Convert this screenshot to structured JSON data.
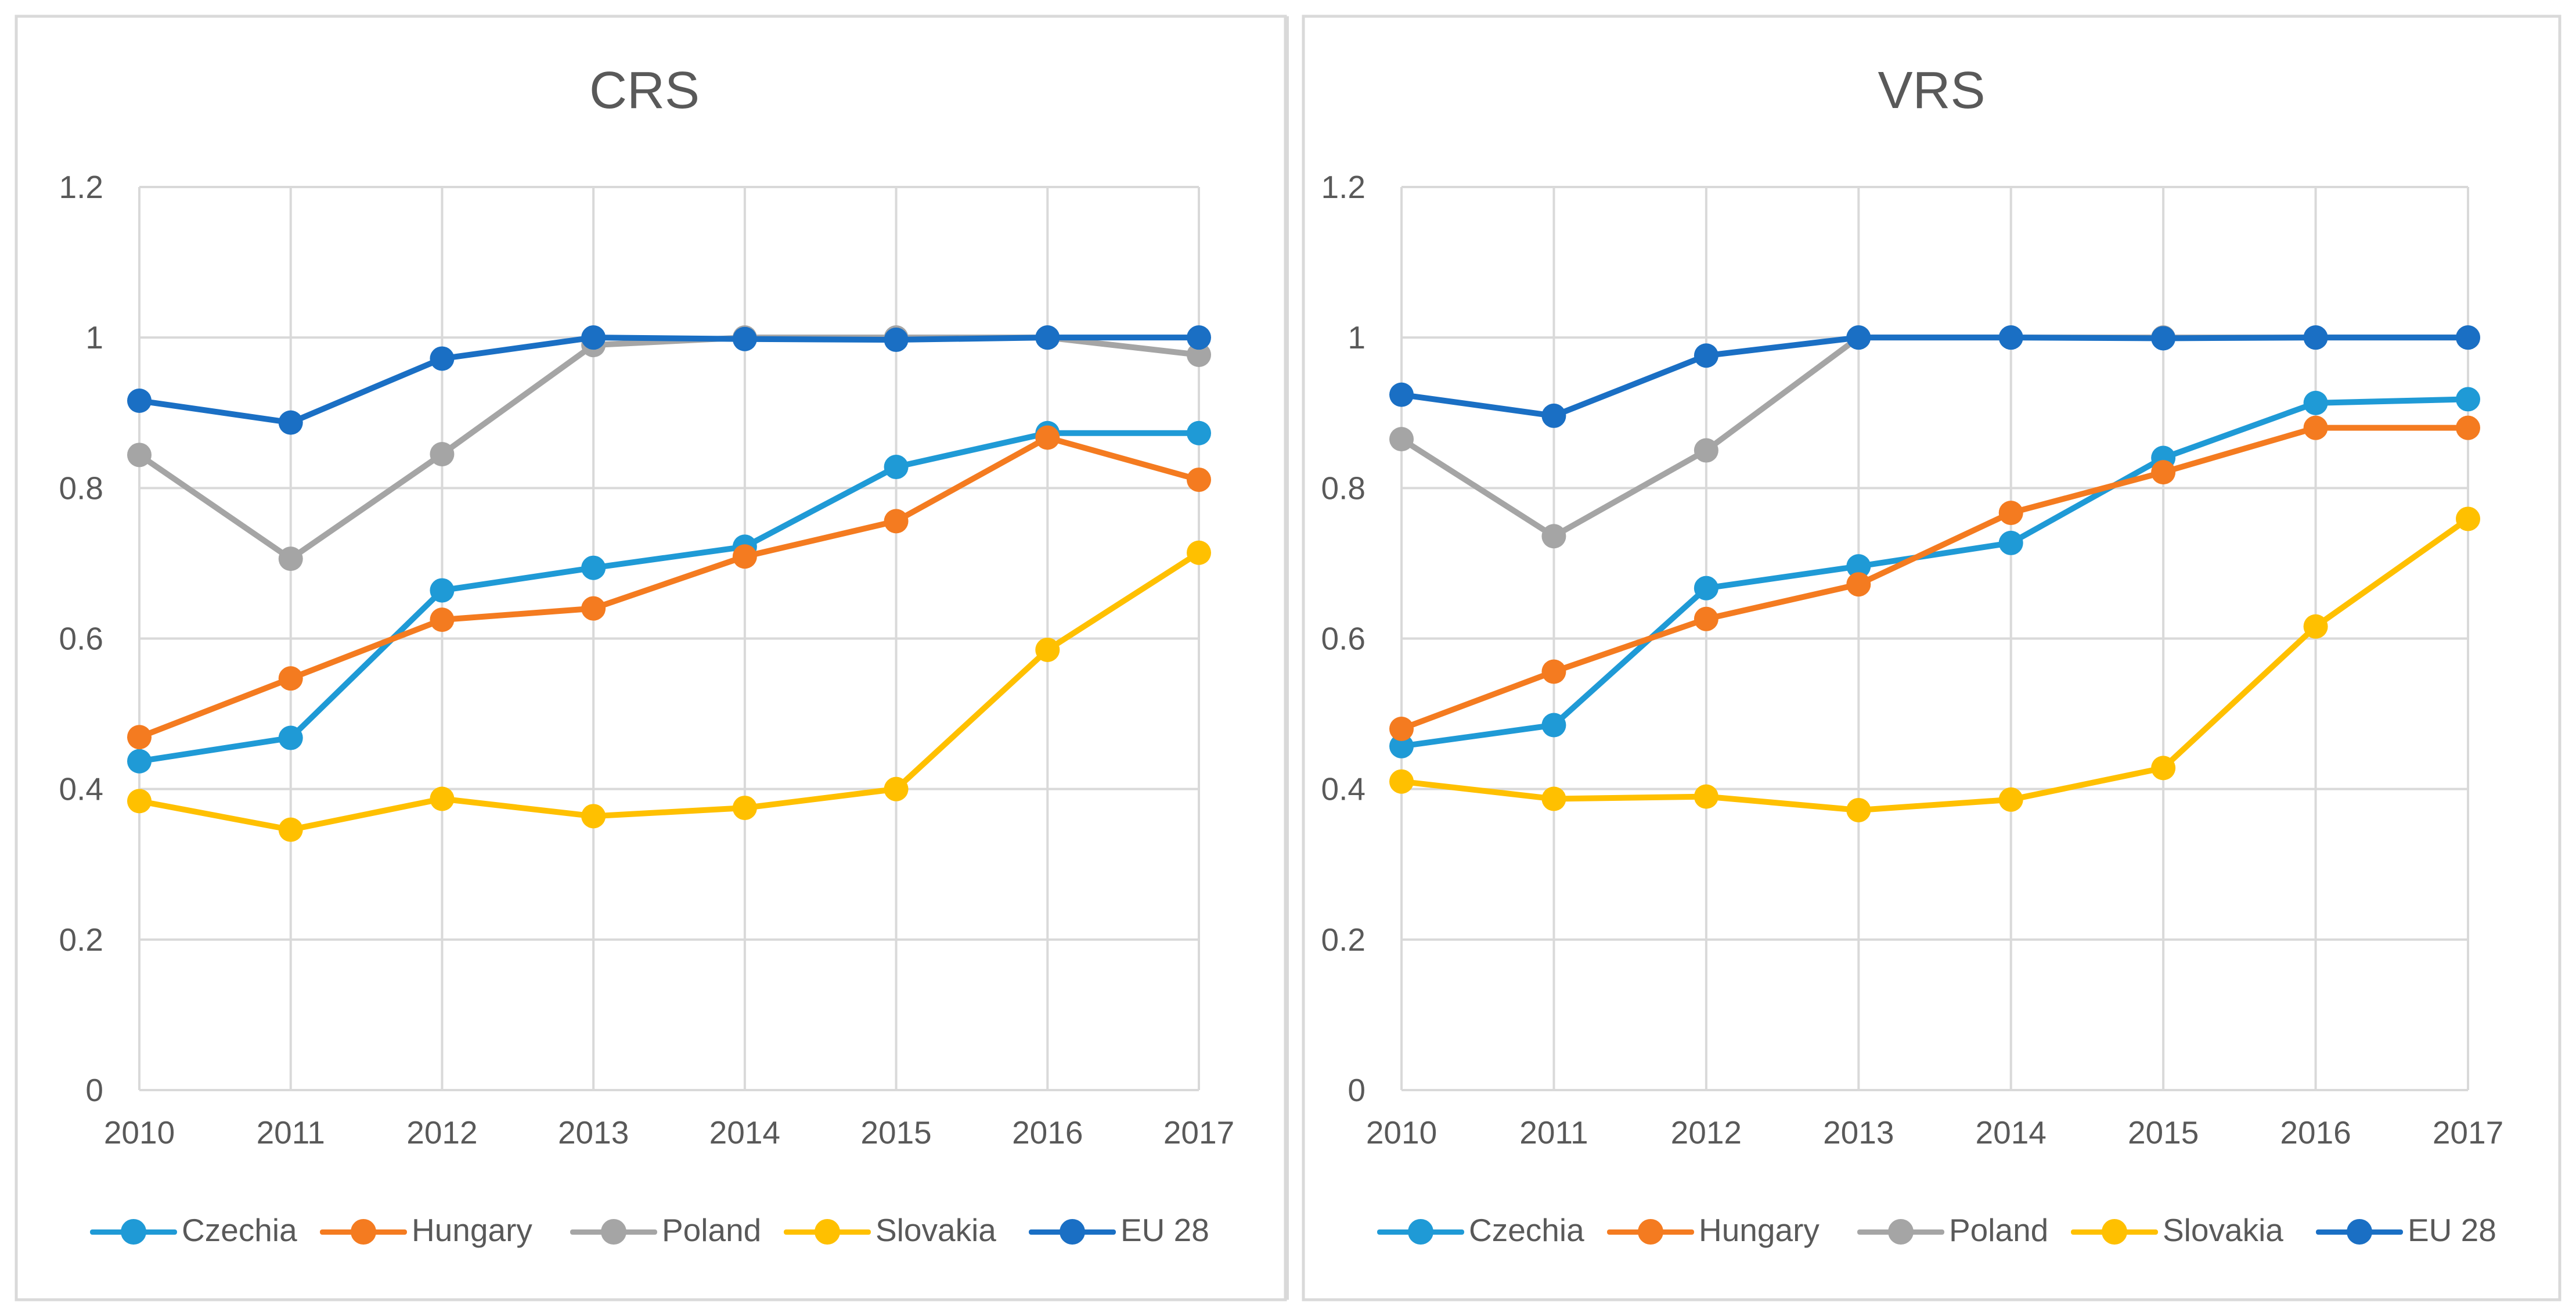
{
  "chart_data": [
    {
      "type": "line",
      "title": "CRS",
      "xlabel": "",
      "ylabel": "",
      "x": [
        "2010",
        "2011",
        "2012",
        "2013",
        "2014",
        "2015",
        "2016",
        "2017"
      ],
      "ylim": [
        0,
        1.2
      ],
      "yticks": [
        "0",
        "0.2",
        "0.4",
        "0.6",
        "0.8",
        "1",
        "1.2"
      ],
      "ytick_values": [
        0,
        0.2,
        0.4,
        0.6,
        0.8,
        1.0,
        1.2
      ],
      "grid": true,
      "legend_position": "bottom",
      "series": [
        {
          "name": "Czechia",
          "color": "#1f9ad6",
          "values": [
            0.437,
            0.468,
            0.664,
            0.694,
            0.722,
            0.828,
            0.873,
            0.873
          ]
        },
        {
          "name": "Hungary",
          "color": "#f47b20",
          "values": [
            0.469,
            0.547,
            0.625,
            0.64,
            0.709,
            0.756,
            0.867,
            0.811
          ]
        },
        {
          "name": "Poland",
          "color": "#a5a5a5",
          "values": [
            0.844,
            0.706,
            0.845,
            0.99,
            1.0,
            1.0,
            1.0,
            0.977
          ]
        },
        {
          "name": "Slovakia",
          "color": "#ffc000",
          "values": [
            0.384,
            0.346,
            0.387,
            0.364,
            0.375,
            0.4,
            0.585,
            0.714
          ]
        },
        {
          "name": "EU 28",
          "color": "#1a6fc4",
          "values": [
            0.916,
            0.887,
            0.972,
            1.0,
            0.998,
            0.997,
            1.0,
            1.0
          ]
        }
      ]
    },
    {
      "type": "line",
      "title": "VRS",
      "xlabel": "",
      "ylabel": "",
      "x": [
        "2010",
        "2011",
        "2012",
        "2013",
        "2014",
        "2015",
        "2016",
        "2017"
      ],
      "ylim": [
        0,
        1.2
      ],
      "yticks": [
        "0",
        "0.2",
        "0.4",
        "0.6",
        "0.8",
        "1",
        "1.2"
      ],
      "ytick_values": [
        0,
        0.2,
        0.4,
        0.6,
        0.8,
        1.0,
        1.2
      ],
      "grid": true,
      "legend_position": "bottom",
      "series": [
        {
          "name": "Czechia",
          "color": "#1f9ad6",
          "values": [
            0.457,
            0.485,
            0.667,
            0.696,
            0.727,
            0.84,
            0.913,
            0.918
          ]
        },
        {
          "name": "Hungary",
          "color": "#f47b20",
          "values": [
            0.48,
            0.556,
            0.626,
            0.672,
            0.767,
            0.821,
            0.88,
            0.88
          ]
        },
        {
          "name": "Poland",
          "color": "#a5a5a5",
          "values": [
            0.865,
            0.736,
            0.85,
            1.0,
            1.0,
            1.0,
            1.0,
            1.0
          ]
        },
        {
          "name": "Slovakia",
          "color": "#ffc000",
          "values": [
            0.41,
            0.387,
            0.39,
            0.372,
            0.386,
            0.428,
            0.616,
            0.759
          ]
        },
        {
          "name": "EU 28",
          "color": "#1a6fc4",
          "values": [
            0.924,
            0.896,
            0.976,
            1.0,
            1.0,
            0.999,
            1.0,
            1.0
          ]
        }
      ]
    }
  ]
}
